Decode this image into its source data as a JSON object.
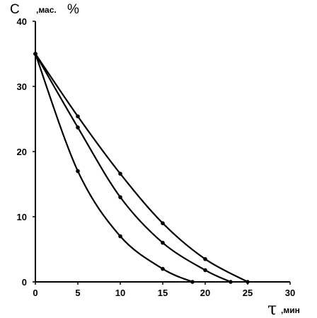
{
  "chart_data": {
    "type": "line",
    "xlim": [
      0,
      30
    ],
    "ylim": [
      0,
      40
    ],
    "x_ticks": [
      "0",
      "5",
      "10",
      "15",
      "20",
      "25",
      "30"
    ],
    "y_ticks": [
      "0",
      "10",
      "20",
      "30",
      "40"
    ],
    "ylabel": {
      "symbol": "C",
      "unit": ",мас.",
      "percent": "%"
    },
    "xlabel": {
      "symbol": "τ",
      "unit": ",мин"
    },
    "grid": false,
    "legend": "none",
    "line_color": "#000000",
    "series": [
      {
        "x": [
          0,
          5,
          10,
          15,
          20,
          25
        ],
        "y": [
          35,
          25.4,
          16.6,
          9.0,
          3.5,
          0
        ]
      },
      {
        "x": [
          0,
          5,
          10,
          15,
          20,
          23
        ],
        "y": [
          35,
          23.7,
          13.0,
          6.0,
          1.8,
          0
        ]
      },
      {
        "x": [
          0,
          5,
          10,
          15,
          18.5
        ],
        "y": [
          35,
          17.0,
          7.0,
          2.0,
          0
        ]
      }
    ]
  }
}
